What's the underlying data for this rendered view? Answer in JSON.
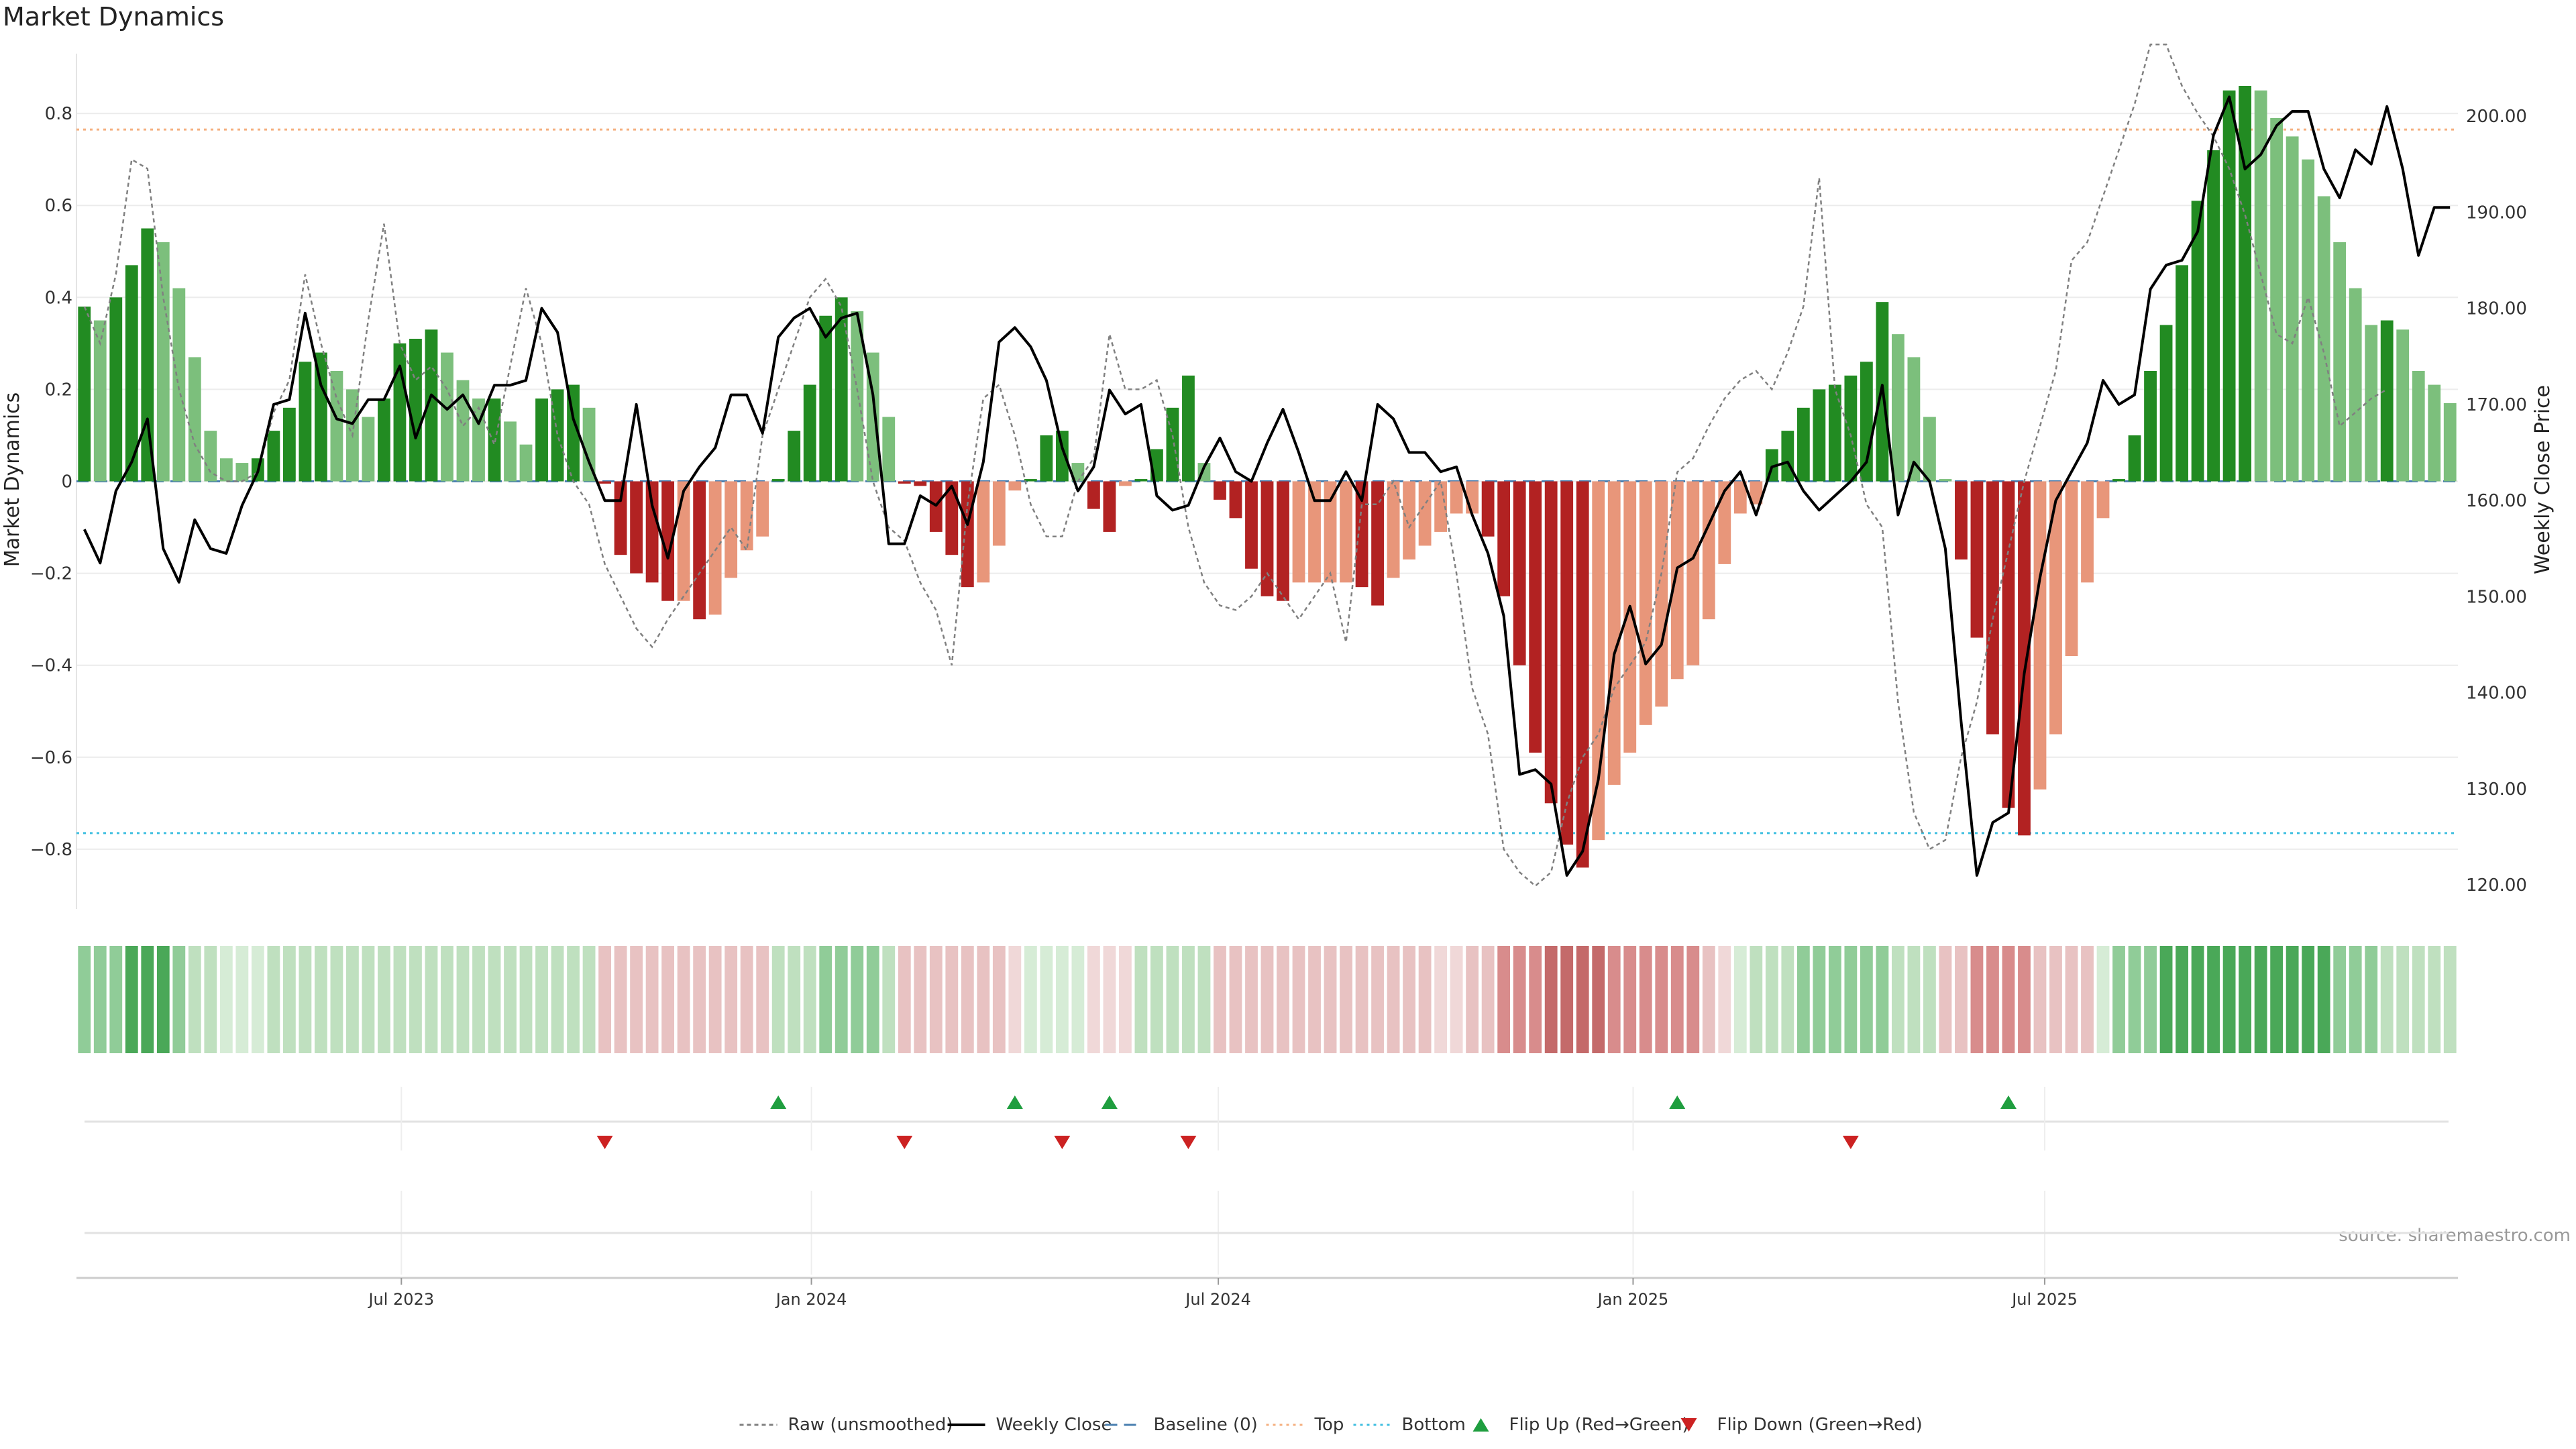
{
  "chart_data": {
    "type": "bar",
    "title": "Market Dynamics",
    "ylabel_left": "Market Dynamics",
    "ylabel_right": "Weekly Close Price",
    "source": "source: sharemaestro.com",
    "x_ticks": [
      {
        "label": "Jul 2023",
        "week": 20.6
      },
      {
        "label": "Jan 2024",
        "week": 46.6
      },
      {
        "label": "Jul 2024",
        "week": 72.4
      },
      {
        "label": "Jan 2025",
        "week": 98.7
      },
      {
        "label": "Jul 2025",
        "week": 124.8
      }
    ],
    "y_left": {
      "min": -0.93,
      "max": 0.93,
      "ticks": [
        0.8,
        0.6,
        0.4,
        0.2,
        0,
        -0.2,
        -0.4,
        -0.6,
        -0.8
      ],
      "tick_labels": [
        "0.8",
        "0.6",
        "0.4",
        "0.2",
        "0",
        "−0.2",
        "−0.4",
        "−0.6",
        "−0.8"
      ]
    },
    "y_right": {
      "min": 117.5,
      "max": 206.5,
      "ticks": [
        200,
        190,
        180,
        170,
        160,
        150,
        140,
        130,
        120
      ],
      "tick_labels": [
        "200.00",
        "190.00",
        "180.00",
        "170.00",
        "160.00",
        "150.00",
        "140.00",
        "130.00",
        "120.00"
      ]
    },
    "top_level": 0.765,
    "bottom_level": -0.765,
    "baseline": 0,
    "market_dynamics": [
      0.38,
      0.35,
      0.4,
      0.47,
      0.55,
      0.52,
      0.42,
      0.27,
      0.11,
      0.05,
      0.04,
      0.05,
      0.11,
      0.16,
      0.26,
      0.28,
      0.24,
      0.2,
      0.14,
      0.18,
      0.3,
      0.31,
      0.33,
      0.28,
      0.22,
      0.18,
      0.18,
      0.13,
      0.08,
      0.18,
      0.2,
      0.21,
      0.16,
      -0.005,
      -0.16,
      -0.2,
      -0.22,
      -0.26,
      -0.26,
      -0.3,
      -0.29,
      -0.21,
      -0.15,
      -0.12,
      0.005,
      0.11,
      0.21,
      0.36,
      0.4,
      0.37,
      0.28,
      0.14,
      -0.005,
      -0.01,
      -0.11,
      -0.16,
      -0.23,
      -0.22,
      -0.14,
      -0.02,
      0.005,
      0.1,
      0.11,
      0.04,
      -0.06,
      -0.11,
      -0.01,
      0.005,
      0.07,
      0.16,
      0.23,
      0.04,
      -0.04,
      -0.08,
      -0.19,
      -0.25,
      -0.26,
      -0.22,
      -0.22,
      -0.22,
      -0.22,
      -0.23,
      -0.27,
      -0.21,
      -0.17,
      -0.14,
      -0.11,
      -0.07,
      -0.07,
      -0.12,
      -0.25,
      -0.4,
      -0.59,
      -0.7,
      -0.79,
      -0.84,
      -0.78,
      -0.66,
      -0.59,
      -0.53,
      -0.49,
      -0.43,
      -0.4,
      -0.3,
      -0.18,
      -0.07,
      -0.05,
      0.07,
      0.11,
      0.16,
      0.2,
      0.21,
      0.23,
      0.26,
      0.39,
      0.32,
      0.27,
      0.14,
      0.005,
      -0.17,
      -0.34,
      -0.55,
      -0.71,
      -0.77,
      -0.67,
      -0.55,
      -0.38,
      -0.22,
      -0.08,
      0.005,
      0.1,
      0.24,
      0.34,
      0.47,
      0.61,
      0.72,
      0.85,
      0.86,
      0.85,
      0.79,
      0.75,
      0.7,
      0.62,
      0.52,
      0.42,
      0.34,
      0.35,
      0.33,
      0.24,
      0.21,
      0.17
    ],
    "raw_unsmoothed": [
      0.38,
      0.3,
      0.45,
      0.7,
      0.68,
      0.4,
      0.2,
      0.08,
      0.02,
      0.0,
      0.0,
      0.02,
      0.15,
      0.22,
      0.45,
      0.3,
      0.18,
      0.1,
      0.35,
      0.56,
      0.3,
      0.22,
      0.25,
      0.2,
      0.12,
      0.16,
      0.08,
      0.25,
      0.42,
      0.3,
      0.1,
      0.0,
      -0.05,
      -0.18,
      -0.25,
      -0.32,
      -0.36,
      -0.3,
      -0.25,
      -0.2,
      -0.15,
      -0.1,
      -0.15,
      0.1,
      0.2,
      0.3,
      0.4,
      0.44,
      0.38,
      0.2,
      0.0,
      -0.1,
      -0.13,
      -0.22,
      -0.28,
      -0.4,
      -0.05,
      0.18,
      0.21,
      0.1,
      -0.05,
      -0.12,
      -0.12,
      0.0,
      0.05,
      0.32,
      0.2,
      0.2,
      0.22,
      0.1,
      -0.1,
      -0.22,
      -0.27,
      -0.28,
      -0.25,
      -0.2,
      -0.25,
      -0.3,
      -0.25,
      -0.2,
      -0.35,
      -0.05,
      -0.05,
      0.0,
      -0.1,
      -0.05,
      0.0,
      -0.2,
      -0.45,
      -0.55,
      -0.8,
      -0.85,
      -0.88,
      -0.85,
      -0.7,
      -0.6,
      -0.55,
      -0.45,
      -0.4,
      -0.35,
      -0.2,
      0.02,
      0.05,
      0.12,
      0.18,
      0.22,
      0.24,
      0.2,
      0.28,
      0.38,
      0.66,
      0.2,
      0.1,
      -0.05,
      -0.1,
      -0.48,
      -0.72,
      -0.8,
      -0.78,
      -0.6,
      -0.48,
      -0.3,
      -0.15,
      0.0,
      0.12,
      0.24,
      0.48,
      0.52,
      0.62,
      0.72,
      0.82,
      0.95,
      0.95,
      0.86,
      0.8,
      0.75,
      0.68,
      0.58,
      0.45,
      0.32,
      0.3,
      0.4,
      0.28,
      0.12,
      0.15,
      0.18,
      0.2
    ],
    "weekly_close": [
      157.0,
      153.5,
      161.0,
      164.0,
      168.5,
      155.0,
      151.5,
      158.0,
      155.0,
      154.5,
      159.5,
      163.0,
      170.0,
      170.5,
      179.5,
      172.0,
      168.5,
      168.0,
      170.5,
      170.5,
      174.0,
      166.5,
      171.0,
      169.5,
      171.0,
      168.0,
      172.0,
      172.0,
      172.5,
      180.0,
      177.5,
      168.5,
      164.0,
      160.0,
      160.0,
      170.0,
      159.5,
      154.0,
      161.0,
      163.5,
      165.5,
      171.0,
      171.0,
      167.0,
      177.0,
      179.0,
      180.0,
      177.0,
      179.0,
      179.5,
      171.0,
      155.5,
      155.5,
      160.5,
      159.5,
      161.5,
      157.5,
      164.0,
      176.5,
      178.0,
      176.0,
      172.5,
      165.5,
      161.0,
      163.5,
      171.5,
      169.0,
      170.0,
      160.5,
      159.0,
      159.5,
      163.5,
      166.5,
      163.0,
      162.0,
      166.0,
      169.5,
      165.0,
      160.0,
      160.0,
      163.0,
      160.0,
      170.0,
      168.5,
      165.0,
      165.0,
      163.0,
      163.5,
      158.5,
      154.5,
      148.0,
      131.5,
      132.0,
      130.5,
      121.0,
      123.5,
      131.0,
      144.0,
      149.0,
      143.0,
      145.0,
      153.0,
      154.0,
      157.5,
      161.0,
      163.0,
      158.5,
      163.5,
      164.0,
      161.0,
      159.0,
      160.5,
      162.0,
      164.0,
      172.0,
      158.5,
      164.0,
      162.0,
      155.0,
      137.0,
      121.0,
      126.5,
      127.5,
      142.0,
      152.0,
      160.0,
      163.0,
      166.0,
      172.5,
      170.0,
      171.0,
      182.0,
      184.5,
      185.0,
      188.0,
      198.0,
      202.0,
      194.5,
      196.0,
      199.0,
      200.5,
      200.5,
      194.5,
      191.5,
      196.5,
      195.0,
      201.0,
      194.5,
      185.5,
      190.5,
      190.5
    ],
    "strip": {
      "levels": [
        "g2",
        "g2",
        "g2",
        "g3",
        "g3",
        "g3",
        "g2",
        "g1",
        "g1",
        "g0",
        "g0",
        "g0",
        "g1",
        "g1",
        "g1",
        "g1",
        "g1",
        "g1",
        "g1",
        "g1",
        "g1",
        "g1",
        "g1",
        "g1",
        "g1",
        "g1",
        "g1",
        "g1",
        "g1",
        "g1",
        "g1",
        "g1",
        "g1",
        "r1",
        "r1",
        "r1",
        "r1",
        "r1",
        "r1",
        "r1",
        "r1",
        "r1",
        "r1",
        "r1",
        "g1",
        "g1",
        "g1",
        "g2",
        "g2",
        "g2",
        "g2",
        "g1",
        "r1",
        "r1",
        "r1",
        "r1",
        "r1",
        "r1",
        "r1",
        "r0",
        "g0",
        "g0",
        "g0",
        "g0",
        "r0",
        "r0",
        "r0",
        "g1",
        "g1",
        "g1",
        "g1",
        "g1",
        "r1",
        "r1",
        "r1",
        "r1",
        "r1",
        "r1",
        "r1",
        "r1",
        "r1",
        "r1",
        "r1",
        "r1",
        "r1",
        "r1",
        "r0",
        "r0",
        "r1",
        "r1",
        "r2",
        "r2",
        "r2",
        "r3",
        "r3",
        "r3",
        "r3",
        "r2",
        "r2",
        "r2",
        "r2",
        "r2",
        "r2",
        "r1",
        "r0",
        "g0",
        "g1",
        "g1",
        "g1",
        "g2",
        "g2",
        "g2",
        "g2",
        "g2",
        "g2",
        "g1",
        "g1",
        "g1",
        "r1",
        "r1",
        "r2",
        "r2",
        "r2",
        "r2",
        "r1",
        "r1",
        "r1",
        "r1",
        "g0",
        "g2",
        "g2",
        "g2",
        "g3",
        "g3",
        "g3",
        "g3",
        "g3",
        "g3",
        "g3",
        "g3",
        "g3",
        "g3",
        "g3",
        "g2",
        "g2",
        "g2",
        "g1",
        "g1",
        "g1",
        "g1",
        "g1"
      ]
    },
    "flips": {
      "up": [
        {
          "week": 44.5
        },
        {
          "week": 59.5
        },
        {
          "week": 65.5
        },
        {
          "week": 101.5
        },
        {
          "week": 122.5
        }
      ],
      "down": [
        {
          "week": 33.5
        },
        {
          "week": 52.5
        },
        {
          "week": 62.5
        },
        {
          "week": 70.5
        },
        {
          "week": 112.5
        }
      ]
    },
    "legend": [
      {
        "label": "Raw (unsmoothed)",
        "style": "raw"
      },
      {
        "label": "Weekly Close",
        "style": "close"
      },
      {
        "label": "Baseline (0)",
        "style": "baseline"
      },
      {
        "label": "Top",
        "style": "top"
      },
      {
        "label": "Bottom",
        "style": "bottom"
      },
      {
        "label": "Flip Up (Red→Green)",
        "style": "up"
      },
      {
        "label": "Flip Down (Green→Red)",
        "style": "down"
      }
    ],
    "colors": {
      "green_strong": "#228b22",
      "green_light": "#7cbf7c",
      "red_strong": "#b22222",
      "red_light": "#e8967a",
      "close_line": "#000000",
      "raw_line": "#808080",
      "baseline": "#4a7fb0",
      "top": "#f5b080",
      "bottom": "#40bfe0",
      "flip_up": "#1f9e3f",
      "flip_down": "#cc2222",
      "strip": {
        "g0": "#d6ecd6",
        "g1": "#bfe0bf",
        "g2": "#90cc98",
        "g3": "#4aa858",
        "r0": "#f0d8d8",
        "r1": "#e8c2c2",
        "r2": "#d88c8c",
        "r3": "#c46a6a"
      }
    }
  }
}
